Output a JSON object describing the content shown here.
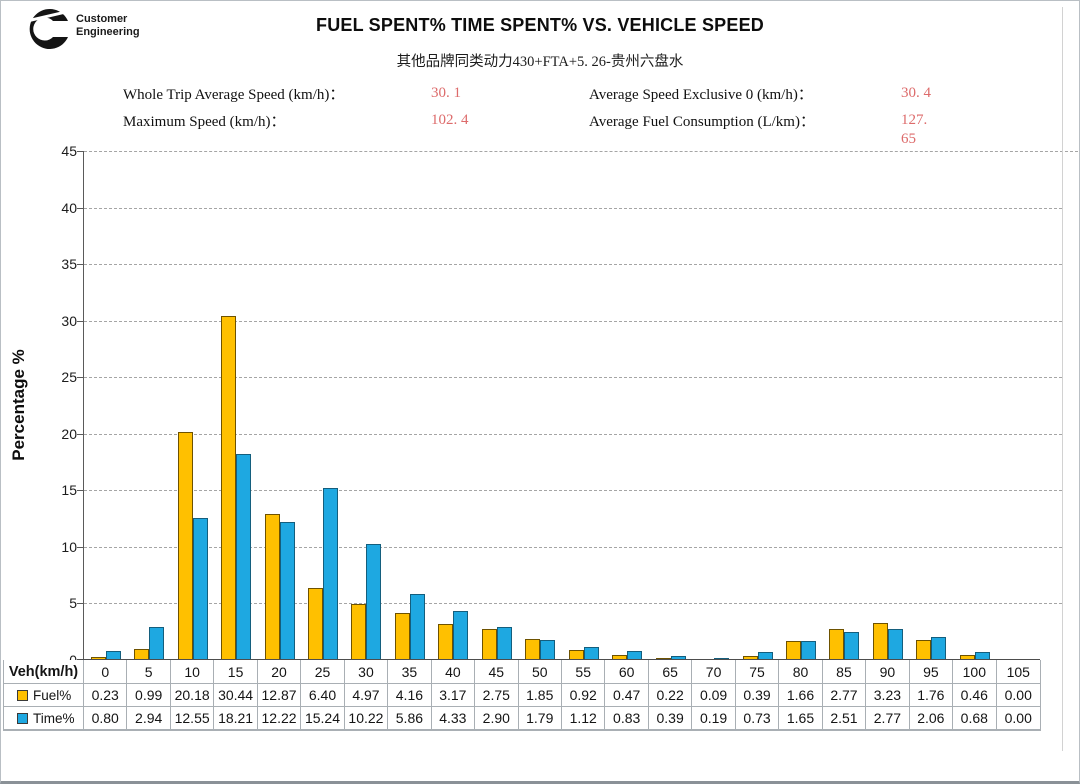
{
  "logo": {
    "line1": "Customer",
    "line2": "Engineering"
  },
  "title": "FUEL SPENT% TIME SPENT% VS. VEHICLE SPEED",
  "subtitle": "其他品牌同类动力430+FTA+5. 26-贵州六盘水",
  "stats": {
    "value_color": "#dd6b6b",
    "items": [
      {
        "label": "Whole Trip Average Speed (km/h)：",
        "value": "30. 1"
      },
      {
        "label": "Average Speed Exclusive 0 (km/h)：",
        "value": "30. 4"
      },
      {
        "label": "Maximum Speed (km/h)：",
        "value": "102. 4"
      },
      {
        "label": "Average Fuel Consumption (L/km)：",
        "value": "127.\n65"
      }
    ]
  },
  "chart_data": {
    "type": "bar",
    "title": "FUEL SPENT% TIME SPENT% VS. VEHICLE SPEED",
    "xlabel": "Veh(km/h)",
    "ylabel": "Percentage %",
    "ylim": [
      0,
      45
    ],
    "ytick_step": 5,
    "grid": true,
    "grid_style": "dashed",
    "legend_position": "table-left",
    "categories": [
      0,
      5,
      10,
      15,
      20,
      25,
      30,
      35,
      40,
      45,
      50,
      55,
      60,
      65,
      70,
      75,
      80,
      85,
      90,
      95,
      100,
      105
    ],
    "series": [
      {
        "name": "Fuel%",
        "color": "#FFC000",
        "outline": "#6e5200",
        "values": [
          0.23,
          0.99,
          20.18,
          30.44,
          12.87,
          6.4,
          4.97,
          4.16,
          3.17,
          2.75,
          1.85,
          0.92,
          0.47,
          0.22,
          0.09,
          0.39,
          1.66,
          2.77,
          3.23,
          1.76,
          0.46,
          0.0
        ]
      },
      {
        "name": "Time%",
        "color": "#1EA8E1",
        "outline": "#145e7d",
        "values": [
          0.8,
          2.94,
          12.55,
          18.21,
          12.22,
          15.24,
          10.22,
          5.86,
          4.33,
          2.9,
          1.79,
          1.12,
          0.83,
          0.39,
          0.19,
          0.73,
          1.65,
          2.51,
          2.77,
          2.06,
          0.68,
          0.0
        ]
      }
    ]
  },
  "table": {
    "row_header": "Veh(km/h)"
  }
}
